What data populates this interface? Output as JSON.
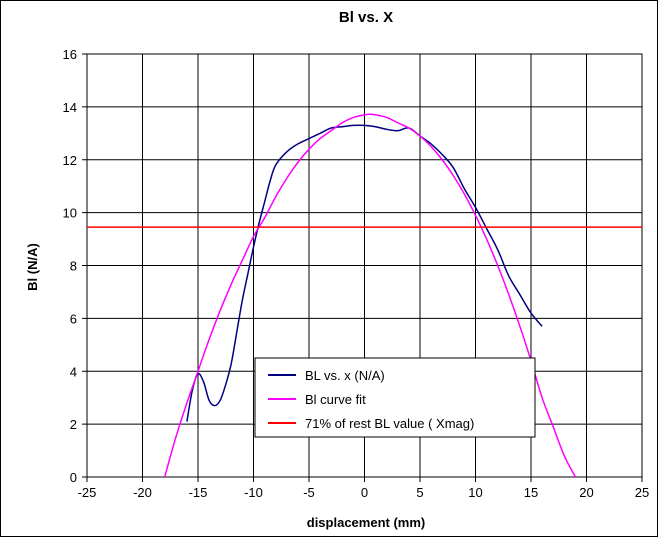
{
  "chart_data": {
    "type": "line",
    "title": "Bl vs. X",
    "xlabel": "displacement (mm)",
    "ylabel": "Bl (N/A)",
    "xlim": [
      -25,
      25
    ],
    "ylim": [
      0,
      16
    ],
    "xticks": [
      -25,
      -20,
      -15,
      -10,
      -5,
      0,
      5,
      10,
      15,
      20,
      25
    ],
    "yticks": [
      0,
      2,
      4,
      6,
      8,
      10,
      12,
      14,
      16
    ],
    "grid": true,
    "legend_position": "bottom-center",
    "series": [
      {
        "name": "BL vs. x (N/A)",
        "color": "#000080",
        "x": [
          -16,
          -15.5,
          -15,
          -14.5,
          -14,
          -13.5,
          -13,
          -12.5,
          -12,
          -11.5,
          -11,
          -10.5,
          -10,
          -9.5,
          -9,
          -8.5,
          -8,
          -7,
          -6,
          -5,
          -4,
          -3,
          -2,
          -1,
          0,
          1,
          2,
          3,
          4,
          5,
          6,
          7,
          8,
          9,
          10,
          11,
          12,
          13,
          14,
          15,
          16
        ],
        "y": [
          2.1,
          3.3,
          3.9,
          3.6,
          2.9,
          2.7,
          2.9,
          3.5,
          4.3,
          5.5,
          6.7,
          7.7,
          8.7,
          9.6,
          10.4,
          11.2,
          11.8,
          12.3,
          12.6,
          12.8,
          13.0,
          13.2,
          13.25,
          13.3,
          13.3,
          13.25,
          13.15,
          13.1,
          13.2,
          12.9,
          12.6,
          12.2,
          11.7,
          10.9,
          10.2,
          9.4,
          8.6,
          7.6,
          6.9,
          6.2,
          5.7
        ]
      },
      {
        "name": "Bl curve fit",
        "color": "#ff00ff",
        "x": [
          -18,
          -17,
          -16,
          -15,
          -14,
          -13,
          -12,
          -11,
          -10,
          -9,
          -8,
          -7,
          -6,
          -5,
          -4,
          -3,
          -2,
          -1,
          0,
          0.5,
          1,
          2,
          3,
          4,
          5,
          6,
          7,
          8,
          9,
          10,
          11,
          12,
          13,
          14,
          15,
          16,
          17,
          18,
          19
        ],
        "y": [
          0.0,
          1.5,
          2.8,
          4.0,
          5.2,
          6.3,
          7.3,
          8.2,
          9.1,
          9.8,
          10.6,
          11.3,
          11.9,
          12.4,
          12.8,
          13.1,
          13.4,
          13.6,
          13.7,
          13.72,
          13.7,
          13.6,
          13.4,
          13.2,
          12.9,
          12.5,
          12.0,
          11.4,
          10.7,
          9.9,
          9.0,
          8.0,
          6.9,
          5.7,
          4.4,
          3.0,
          1.9,
          0.8,
          0.0
        ]
      },
      {
        "name": "71% of rest BL value ( Xmag)",
        "color": "#ff0000",
        "x": [
          -25,
          25
        ],
        "y": [
          9.45,
          9.45
        ]
      }
    ]
  }
}
